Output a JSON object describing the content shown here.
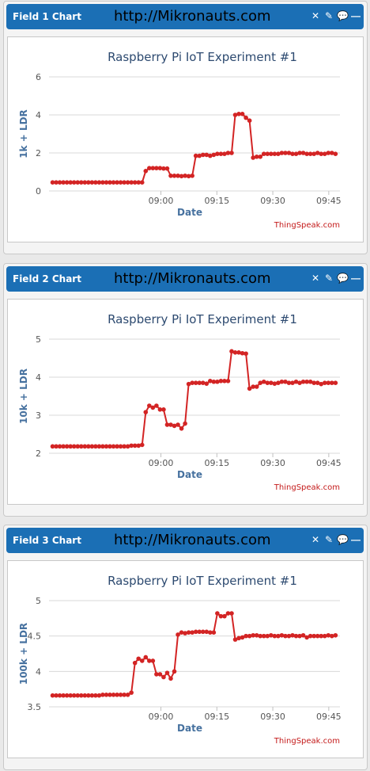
{
  "site_label": "http://Mikronauts.com",
  "header_icons": [
    "close-icon",
    "edit-icon",
    "comment-icon",
    "minimize-icon"
  ],
  "colors": {
    "header": "#1b6fb5",
    "series": "#d32424",
    "axis_label": "#46719f",
    "credit": "#c41a1a"
  },
  "panels": [
    {
      "title": "Field 1 Chart",
      "url": "http://Mikronauts.com",
      "chart_data": {
        "type": "line",
        "title": "Raspberry Pi IoT Experiment #1",
        "xlabel": "Date",
        "ylabel": "1k + LDR",
        "credit": "ThingSpeak.com",
        "ylim": [
          0,
          6
        ],
        "yticks": [
          "0",
          "2",
          "4",
          "6"
        ],
        "xlim": [
          8.5,
          9.8
        ],
        "xticks": [
          "09:00",
          "09:15",
          "09:30",
          "09:45"
        ],
        "grid": true,
        "x": [
          8.516,
          8.532,
          8.548,
          8.564,
          8.58,
          8.596,
          8.612,
          8.628,
          8.644,
          8.66,
          8.676,
          8.692,
          8.708,
          8.724,
          8.74,
          8.756,
          8.772,
          8.788,
          8.804,
          8.82,
          8.836,
          8.852,
          8.868,
          8.884,
          8.9,
          8.916,
          8.932,
          8.948,
          8.964,
          8.98,
          8.996,
          9.012,
          9.028,
          9.044,
          9.06,
          9.076,
          9.092,
          9.108,
          9.124,
          9.14,
          9.156,
          9.172,
          9.188,
          9.204,
          9.22,
          9.236,
          9.252,
          9.268,
          9.284,
          9.3,
          9.316,
          9.332,
          9.348,
          9.364,
          9.38,
          9.396,
          9.412,
          9.428,
          9.444,
          9.46,
          9.476,
          9.492,
          9.508,
          9.524,
          9.54,
          9.556,
          9.572,
          9.588,
          9.604,
          9.62,
          9.636,
          9.652,
          9.668,
          9.684,
          9.7,
          9.716,
          9.732,
          9.748,
          9.764,
          9.78
        ],
        "series": [
          {
            "values": [
              0.45,
              0.45,
              0.45,
              0.45,
              0.45,
              0.45,
              0.45,
              0.45,
              0.45,
              0.45,
              0.45,
              0.45,
              0.45,
              0.45,
              0.45,
              0.45,
              0.45,
              0.45,
              0.45,
              0.45,
              0.45,
              0.45,
              0.45,
              0.45,
              0.45,
              0.45,
              1.05,
              1.2,
              1.2,
              1.2,
              1.2,
              1.18,
              1.18,
              0.8,
              0.8,
              0.8,
              0.78,
              0.8,
              0.78,
              0.8,
              1.85,
              1.85,
              1.9,
              1.9,
              1.85,
              1.9,
              1.95,
              1.95,
              1.95,
              2.0,
              2.0,
              4.0,
              4.05,
              4.05,
              3.85,
              3.7,
              1.75,
              1.8,
              1.8,
              1.95,
              1.95,
              1.95,
              1.95,
              1.95,
              2.0,
              2.0,
              2.0,
              1.95,
              1.95,
              2.0,
              2.0,
              1.95,
              1.95,
              1.95,
              2.0,
              1.95,
              1.95,
              2.0,
              2.0,
              1.95
            ]
          }
        ]
      }
    },
    {
      "title": "Field 2 Chart",
      "url": "http://Mikronauts.com",
      "chart_data": {
        "type": "line",
        "title": "Raspberry Pi IoT Experiment #1",
        "xlabel": "Date",
        "ylabel": "10k + LDR",
        "credit": "ThingSpeak.com",
        "ylim": [
          2,
          5
        ],
        "yticks": [
          "2",
          "3",
          "4",
          "5"
        ],
        "xlim": [
          8.5,
          9.8
        ],
        "xticks": [
          "09:00",
          "09:15",
          "09:30",
          "09:45"
        ],
        "grid": true,
        "x": [
          8.516,
          8.532,
          8.548,
          8.564,
          8.58,
          8.596,
          8.612,
          8.628,
          8.644,
          8.66,
          8.676,
          8.692,
          8.708,
          8.724,
          8.74,
          8.756,
          8.772,
          8.788,
          8.804,
          8.82,
          8.836,
          8.852,
          8.868,
          8.884,
          8.9,
          8.916,
          8.932,
          8.948,
          8.964,
          8.98,
          8.996,
          9.012,
          9.028,
          9.044,
          9.06,
          9.076,
          9.092,
          9.108,
          9.124,
          9.14,
          9.156,
          9.172,
          9.188,
          9.204,
          9.22,
          9.236,
          9.252,
          9.268,
          9.284,
          9.3,
          9.316,
          9.332,
          9.348,
          9.364,
          9.38,
          9.396,
          9.412,
          9.428,
          9.444,
          9.46,
          9.476,
          9.492,
          9.508,
          9.524,
          9.54,
          9.556,
          9.572,
          9.588,
          9.604,
          9.62,
          9.636,
          9.652,
          9.668,
          9.684,
          9.7,
          9.716,
          9.732,
          9.748,
          9.764,
          9.78
        ],
        "series": [
          {
            "values": [
              2.18,
              2.18,
              2.18,
              2.18,
              2.18,
              2.18,
              2.18,
              2.18,
              2.18,
              2.18,
              2.18,
              2.18,
              2.18,
              2.18,
              2.18,
              2.18,
              2.18,
              2.18,
              2.18,
              2.18,
              2.18,
              2.18,
              2.2,
              2.2,
              2.2,
              2.22,
              3.08,
              3.25,
              3.2,
              3.25,
              3.15,
              3.15,
              2.75,
              2.75,
              2.72,
              2.75,
              2.65,
              2.78,
              3.82,
              3.85,
              3.85,
              3.85,
              3.85,
              3.83,
              3.9,
              3.88,
              3.88,
              3.9,
              3.9,
              3.9,
              4.68,
              4.65,
              4.65,
              4.63,
              4.62,
              3.7,
              3.75,
              3.75,
              3.85,
              3.88,
              3.85,
              3.85,
              3.83,
              3.85,
              3.88,
              3.88,
              3.85,
              3.85,
              3.88,
              3.85,
              3.88,
              3.88,
              3.88,
              3.85,
              3.85,
              3.82,
              3.85,
              3.85,
              3.85,
              3.85
            ]
          }
        ]
      }
    },
    {
      "title": "Field 3 Chart",
      "url": "http://Mikronauts.com",
      "chart_data": {
        "type": "line",
        "title": "Raspberry Pi IoT Experiment #1",
        "xlabel": "Date",
        "ylabel": "100k + LDR",
        "credit": "ThingSpeak.com",
        "ylim": [
          3.5,
          5
        ],
        "yticks": [
          "3.5",
          "4",
          "4.5",
          "5"
        ],
        "xlim": [
          8.5,
          9.8
        ],
        "xticks": [
          "09:00",
          "09:15",
          "09:30",
          "09:45"
        ],
        "grid": true,
        "x": [
          8.516,
          8.532,
          8.548,
          8.564,
          8.58,
          8.596,
          8.612,
          8.628,
          8.644,
          8.66,
          8.676,
          8.692,
          8.708,
          8.724,
          8.74,
          8.756,
          8.772,
          8.788,
          8.804,
          8.82,
          8.836,
          8.852,
          8.868,
          8.884,
          8.9,
          8.916,
          8.932,
          8.948,
          8.964,
          8.98,
          8.996,
          9.012,
          9.028,
          9.044,
          9.06,
          9.076,
          9.092,
          9.108,
          9.124,
          9.14,
          9.156,
          9.172,
          9.188,
          9.204,
          9.22,
          9.236,
          9.252,
          9.268,
          9.284,
          9.3,
          9.316,
          9.332,
          9.348,
          9.364,
          9.38,
          9.396,
          9.412,
          9.428,
          9.444,
          9.46,
          9.476,
          9.492,
          9.508,
          9.524,
          9.54,
          9.556,
          9.572,
          9.588,
          9.604,
          9.62,
          9.636,
          9.652,
          9.668,
          9.684,
          9.7,
          9.716,
          9.732,
          9.748,
          9.764,
          9.78
        ],
        "series": [
          {
            "values": [
              3.66,
              3.66,
              3.66,
              3.66,
              3.66,
              3.66,
              3.66,
              3.66,
              3.66,
              3.66,
              3.66,
              3.66,
              3.66,
              3.66,
              3.67,
              3.67,
              3.67,
              3.67,
              3.67,
              3.67,
              3.67,
              3.67,
              3.7,
              4.12,
              4.18,
              4.15,
              4.2,
              4.15,
              4.15,
              3.96,
              3.96,
              3.92,
              3.98,
              3.9,
              4.0,
              4.52,
              4.55,
              4.54,
              4.55,
              4.55,
              4.56,
              4.56,
              4.56,
              4.56,
              4.55,
              4.55,
              4.82,
              4.78,
              4.78,
              4.82,
              4.82,
              4.45,
              4.47,
              4.48,
              4.5,
              4.5,
              4.51,
              4.51,
              4.5,
              4.5,
              4.5,
              4.51,
              4.5,
              4.5,
              4.51,
              4.5,
              4.5,
              4.51,
              4.5,
              4.5,
              4.51,
              4.48,
              4.5,
              4.5,
              4.5,
              4.5,
              4.5,
              4.51,
              4.5,
              4.51
            ]
          }
        ]
      }
    }
  ]
}
